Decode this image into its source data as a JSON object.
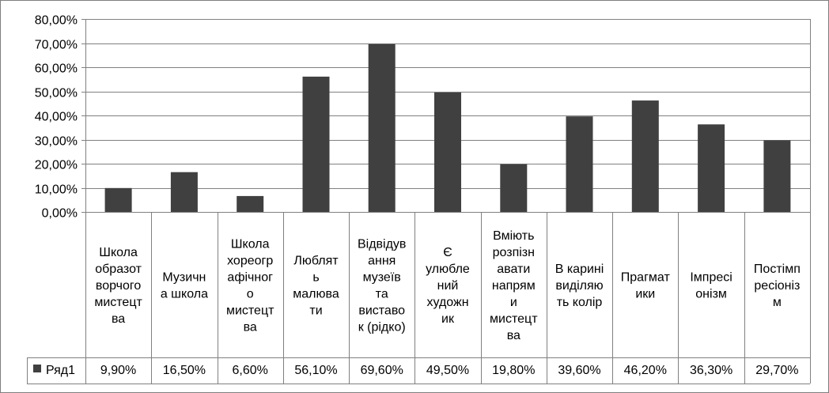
{
  "chart_data": {
    "type": "bar",
    "categories": [
      [
        "Школа",
        "образот",
        "ворчого",
        "мистецт",
        "ва"
      ],
      [
        "Музичн",
        "а школа"
      ],
      [
        "Школа",
        "хореогр",
        "афічног",
        "о",
        "мистецт",
        "ва"
      ],
      [
        "Люблят",
        "ь",
        "малюва",
        "ти"
      ],
      [
        "Відвідув",
        "ання",
        "музеїв",
        "та",
        "виставо",
        "к (рідко)"
      ],
      [
        "Є",
        "улюбле",
        "ний",
        "художн",
        "ик"
      ],
      [
        "Вміють",
        "розпізн",
        "авати",
        "напрям",
        "и",
        "мистецт",
        "ва"
      ],
      [
        "В карині",
        "виділяю",
        "ть колір"
      ],
      [
        "Прагмат",
        "ики"
      ],
      [
        "Імпресі",
        "онізм"
      ],
      [
        "Постімп",
        "ресіоніз",
        "м"
      ]
    ],
    "series": [
      {
        "name": "Ряд1",
        "values": [
          9.9,
          16.5,
          6.6,
          56.1,
          69.6,
          49.5,
          19.8,
          39.6,
          46.2,
          36.3,
          29.7
        ],
        "labels": [
          "9,90%",
          "16,50%",
          "6,60%",
          "56,10%",
          "69,60%",
          "49,50%",
          "19,80%",
          "39,60%",
          "46,20%",
          "36,30%",
          "29,70%"
        ],
        "color": "#404040"
      }
    ],
    "y_ticks": [
      "0,00%",
      "10,00%",
      "20,00%",
      "30,00%",
      "40,00%",
      "50,00%",
      "60,00%",
      "70,00%",
      "80,00%"
    ],
    "ylim": [
      0,
      80
    ],
    "grid": true,
    "legend": "data-table-left",
    "title": "",
    "xlabel": "",
    "ylabel": ""
  }
}
